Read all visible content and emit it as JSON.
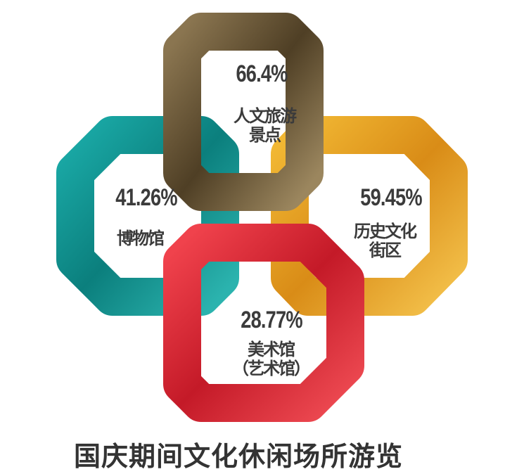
{
  "chart_data": {
    "type": "infographic",
    "title": "国庆期间文化休闲场所游览",
    "items": [
      {
        "category_lines": [
          "人文旅游",
          "景点"
        ],
        "value": 66.4,
        "label": "66.4%",
        "color": "#6b5a3e"
      },
      {
        "category_lines": [
          "博物馆"
        ],
        "value": 41.26,
        "label": "41.26%",
        "color": "#139a98"
      },
      {
        "category_lines": [
          "历史文化",
          "街区"
        ],
        "value": 59.45,
        "label": "59.45%",
        "color": "#e9a628"
      },
      {
        "category_lines": [
          "美术馆",
          "（艺术馆）"
        ],
        "value": 28.77,
        "label": "28.77%",
        "color": "#e0303c"
      }
    ]
  }
}
